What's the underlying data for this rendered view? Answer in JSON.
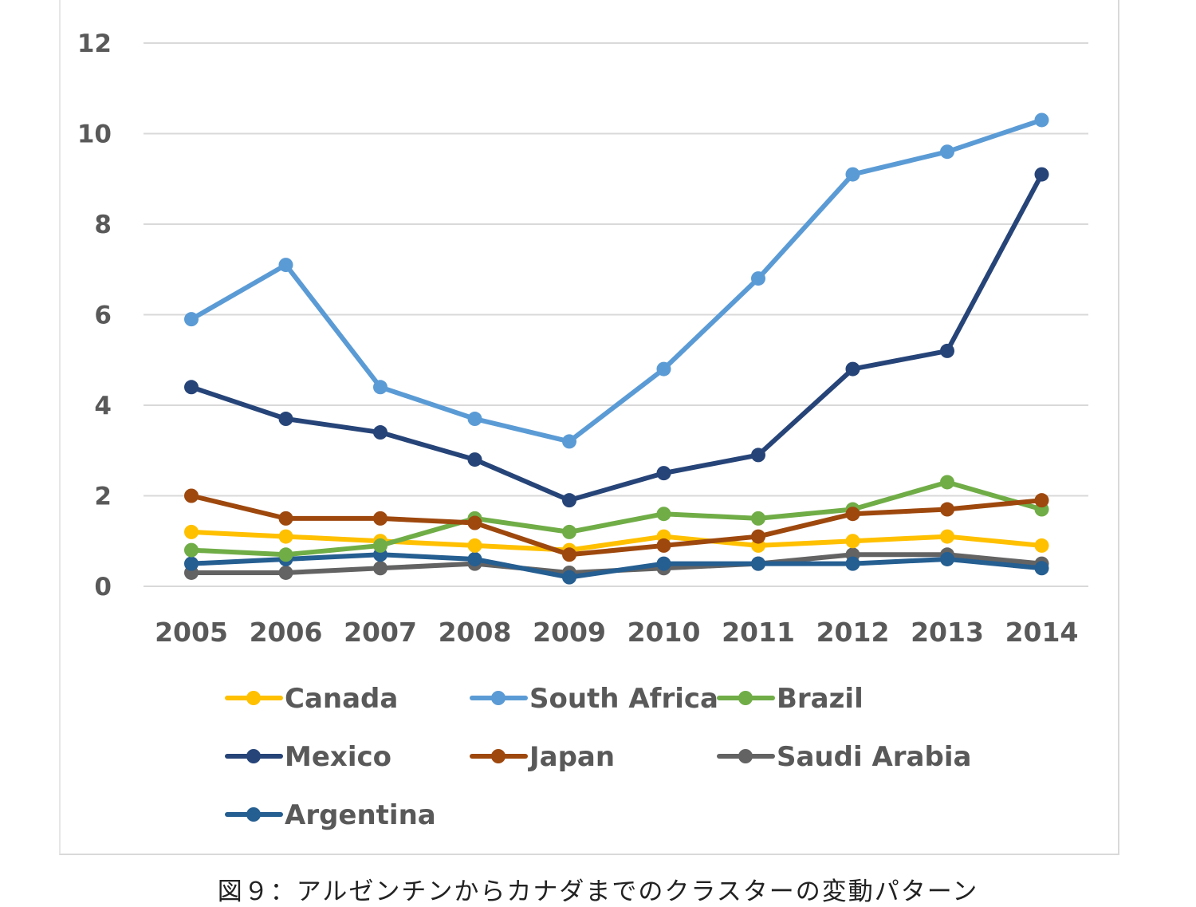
{
  "caption": "図９：アルゼンチンからカナダまでのクラスターの変動パターン",
  "chart_data": {
    "type": "line",
    "title": "",
    "xlabel": "",
    "ylabel": "",
    "categories": [
      "2005",
      "2006",
      "2007",
      "2008",
      "2009",
      "2010",
      "2011",
      "2012",
      "2013",
      "2014"
    ],
    "ylim": [
      0,
      12
    ],
    "yticks": [
      0,
      2,
      4,
      6,
      8,
      10,
      12
    ],
    "grid": "horizontal",
    "legend_position": "bottom",
    "series": [
      {
        "name": "Canada",
        "color": "#FFC000",
        "values": [
          1.2,
          1.1,
          1.0,
          0.9,
          0.8,
          1.1,
          0.9,
          1.0,
          1.1,
          0.9
        ]
      },
      {
        "name": "South Africa",
        "color": "#5B9BD5",
        "values": [
          5.9,
          7.1,
          4.4,
          3.7,
          3.2,
          4.8,
          6.8,
          9.1,
          9.6,
          10.3
        ]
      },
      {
        "name": "Brazil",
        "color": "#70AD47",
        "values": [
          0.8,
          0.7,
          0.9,
          1.5,
          1.2,
          1.6,
          1.5,
          1.7,
          2.3,
          1.7
        ]
      },
      {
        "name": "Mexico",
        "color": "#264478",
        "values": [
          4.4,
          3.7,
          3.4,
          2.8,
          1.9,
          2.5,
          2.9,
          4.8,
          5.2,
          9.1
        ]
      },
      {
        "name": "Japan",
        "color": "#9E480E",
        "values": [
          2.0,
          1.5,
          1.5,
          1.4,
          0.7,
          0.9,
          1.1,
          1.6,
          1.7,
          1.9
        ]
      },
      {
        "name": "Saudi Arabia",
        "color": "#636363",
        "values": [
          0.3,
          0.3,
          0.4,
          0.5,
          0.3,
          0.4,
          0.5,
          0.7,
          0.7,
          0.5
        ]
      },
      {
        "name": "Argentina",
        "color": "#255E91",
        "values": [
          0.5,
          0.6,
          0.7,
          0.6,
          0.2,
          0.5,
          0.5,
          0.5,
          0.6,
          0.4
        ]
      }
    ]
  }
}
